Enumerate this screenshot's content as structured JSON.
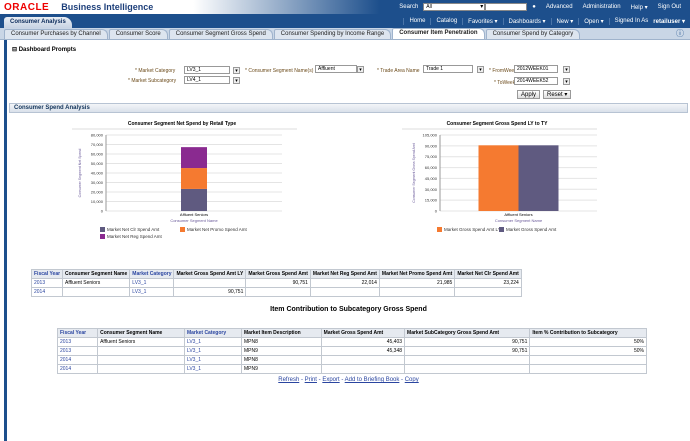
{
  "header": {
    "logo": "ORACLE",
    "product": "Business Intelligence",
    "search_label": "Search",
    "search_scope": "All",
    "advanced": "Advanced",
    "administration": "Administration",
    "help": "Help ▾",
    "sign_out": "Sign Out"
  },
  "nav": {
    "app_tab": "Consumer Analysis",
    "items": [
      "Home",
      "Catalog",
      "Favorites ▾",
      "Dashboards ▾",
      "New ▾",
      "Open ▾"
    ],
    "signed_in_label": "Signed In As",
    "user": "retailuser ▾"
  },
  "tabs": [
    "Consumer Purchases by Channel",
    "Consumer Score",
    "Consumer Segment Gross Spend",
    "Consumer Spending by Income Range",
    "Consumer Item Penetration",
    "Consumer Spend by Category"
  ],
  "active_tab": 4,
  "prompts": {
    "title": "Dashboard Prompts",
    "market_category_label": "* Market Category",
    "market_category": "LV3_1",
    "market_subcategory_label": "* Market Subcategory",
    "market_subcategory": "LV4_1",
    "segment_label": "* Consumer Segment Name(s)",
    "segment": "Affluent Seniors;Aff",
    "trade_area_label": "* Trade Area Name",
    "trade_area": "Trade 1",
    "from_week_label": "* FromWeek",
    "from_week": "2012WEEK01",
    "to_week_label": "* ToWeek",
    "to_week": "2014WEEK52",
    "apply": "Apply",
    "reset": "Reset ▾"
  },
  "section": {
    "title": "Consumer Spend Analysis"
  },
  "chart_data": [
    {
      "type": "bar",
      "stacked": true,
      "title": "Consumer Segment Net Spend by Retail Type",
      "xlabel": "Consumer Segment Name",
      "ylabel": "Consumer Segment Net Spend",
      "categories": [
        "Affluent Seniors"
      ],
      "ylim": [
        0,
        80000
      ],
      "yticks": [
        "0",
        "10,000",
        "20,000",
        "30,000",
        "40,000",
        "50,000",
        "60,000",
        "70,000",
        "80,000"
      ],
      "legend": "bottom",
      "series": [
        {
          "name": "Market Net Clr Spend Amt",
          "values": [
            23224
          ],
          "color": "#5f5a80"
        },
        {
          "name": "Market Net Promo Spend Amt",
          "values": [
            21985
          ],
          "color": "#f57a30"
        },
        {
          "name": "Market Net Reg Spend Amt",
          "values": [
            22014
          ],
          "color": "#8a2a90"
        }
      ]
    },
    {
      "type": "bar",
      "title": "Consumer Segment Gross Spend LY to TY",
      "xlabel": "Consumer Segment Name",
      "ylabel": "Consumer Segment Gross Spend Amt",
      "categories": [
        "Affluent Seniors"
      ],
      "ylim": [
        0,
        105000
      ],
      "yticks": [
        "0",
        "15,000",
        "30,000",
        "45,000",
        "60,000",
        "75,000",
        "90,000",
        "105,000"
      ],
      "legend": "bottom",
      "series": [
        {
          "name": "Market Gross Spend Amt LY",
          "values": [
            90751
          ],
          "color": "#f57a30"
        },
        {
          "name": "Market Gross Spend Amt",
          "values": [
            90751
          ],
          "color": "#5f5a80"
        }
      ]
    }
  ],
  "table1": {
    "headers": [
      "Fiscal Year",
      "Consumer Segment Name",
      "Market Category",
      "Market Gross Spend Amt LY",
      "Market Gross Spend Amt",
      "Market Net Reg Spend Amt",
      "Market Net Promo Spend Amt",
      "Market Net Clr Spend Amt"
    ],
    "rows": [
      [
        "2013",
        "Affluent Seniors",
        "LV3_1",
        "",
        "90,751",
        "22,014",
        "21,985",
        "23,224"
      ],
      [
        "2014",
        "",
        "LV3_1",
        "90,751",
        "",
        "",
        "",
        ""
      ]
    ]
  },
  "table2": {
    "title": "Item Contribution to Subcategory Gross Spend",
    "headers": [
      "Fiscal Year",
      "Consumer Segment Name",
      "Market Category",
      "Market Item Description",
      "Market Gross Spend Amt",
      "Market SubCategory Gross Spend Amt",
      "Item % Contribution to Subcategory"
    ],
    "rows": [
      [
        "2013",
        "Affluent Seniors",
        "LV3_1",
        "MPN8",
        "45,403",
        "90,751",
        "50%"
      ],
      [
        "2013",
        "",
        "LV3_1",
        "MPN9",
        "45,348",
        "90,751",
        "50%"
      ],
      [
        "2014",
        "",
        "LV3_1",
        "MPN8",
        "",
        "",
        ""
      ],
      [
        "2014",
        "",
        "LV3_1",
        "MPN9",
        "",
        "",
        ""
      ]
    ]
  },
  "links": [
    "Refresh",
    "Print",
    "Export",
    "Add to Briefing Book",
    "Copy"
  ]
}
